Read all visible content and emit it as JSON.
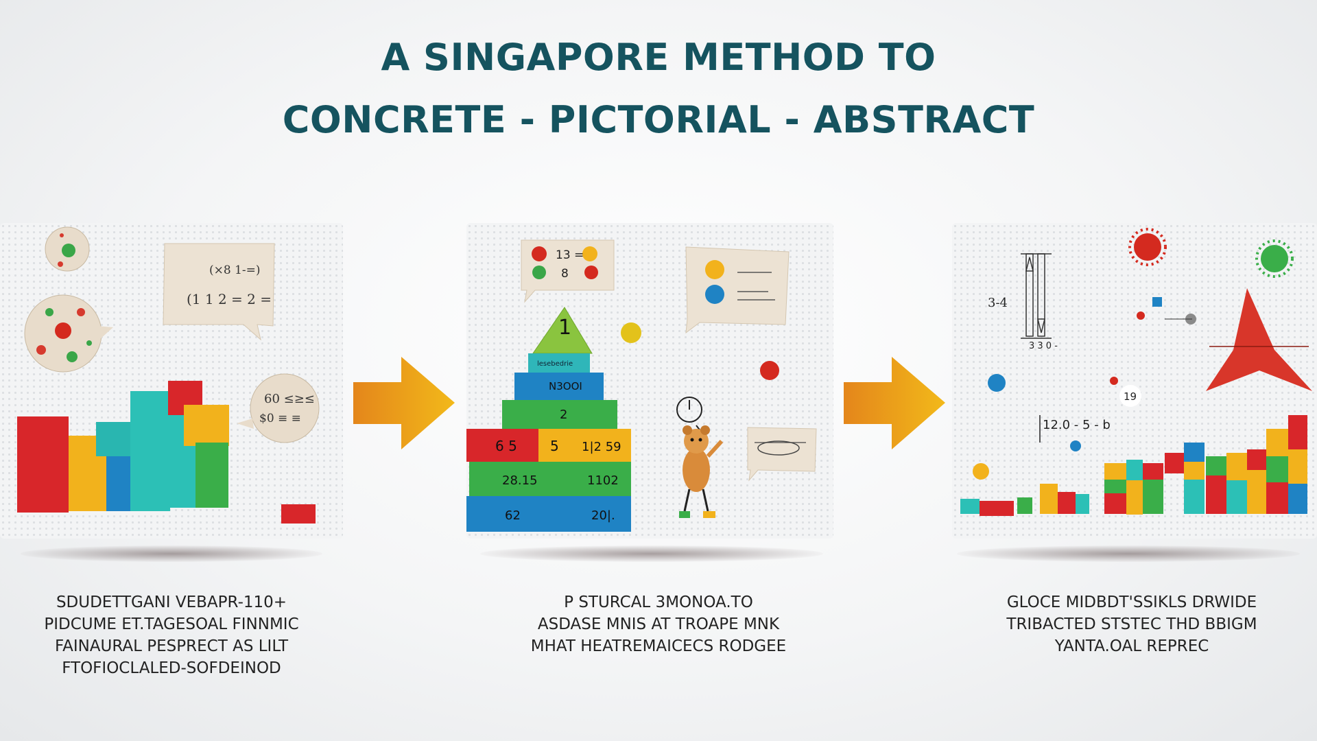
{
  "title": {
    "line1": "A SINGAPORE METHOD TO",
    "line2": "CONCRETE - PICTORIAL - ABSTRACT"
  },
  "panels": [
    {
      "labels": {
        "bubble_a": "(×8 1-=)",
        "bubble_b": "(1 1 2 = 2 =",
        "bubble_c1": "60 ≤≥≤",
        "bubble_c2": "$0 ≡ ≡"
      },
      "caption": [
        "SDUDETTGANI VEBAPR-110+",
        "PIDCUME ET.TAGESOAL FINNMIC",
        "FAINAURAL PESPRECT AS LILT",
        "FTOFIOCLALED-SOFDEINOD"
      ]
    },
    {
      "labels": {
        "bubble_a": "13 =",
        "bubble_b": "8",
        "tri": "1",
        "row1": "lesebedrie",
        "row2": "N3OOI",
        "row3": "2",
        "row4a": "6 5",
        "row4b": "5",
        "row4c": "1|2 59",
        "row5a": "28.15",
        "row5b": "1102",
        "row6a": "62",
        "row6b": "20|."
      },
      "caption": [
        "P STURCAL 3MONOA.TO",
        "ASDASE MNIS AT TROAPE MNK",
        "MHAT HEATREMAICECS RODGEE"
      ]
    },
    {
      "labels": {
        "a": "3-4",
        "b": "3 3 0 -",
        "c": "19",
        "d": "12.0 - 5 - b"
      },
      "caption": [
        "GLOCE MIDBDT'SSIKLS DRWIDE",
        "TRIBACTED STSTEC THD BBIGM",
        "YANTA.OAL REPREC"
      ]
    }
  ]
}
